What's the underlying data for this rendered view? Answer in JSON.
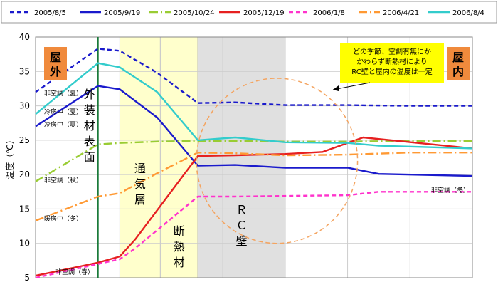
{
  "chart_data": {
    "type": "line",
    "ylabel": "温度（℃）",
    "ylim": [
      5,
      40
    ],
    "yticks": [
      5,
      10,
      15,
      20,
      25,
      30,
      35,
      40
    ],
    "grid": true,
    "legend_placement": "top",
    "series": [
      {
        "name": "2005/8/5",
        "color": "#1a1acc",
        "dash": "6,4",
        "points": [
          [
            0,
            32
          ],
          [
            1,
            38.3
          ],
          [
            1.35,
            38
          ],
          [
            1.95,
            34.8
          ],
          [
            2.6,
            30.4
          ],
          [
            3.2,
            30.5
          ],
          [
            4.0,
            30.1
          ],
          [
            5.0,
            30.1
          ],
          [
            6.0,
            30.0
          ],
          [
            7.0,
            30.0
          ]
        ]
      },
      {
        "name": "2005/9/19",
        "color": "#1a1acc",
        "dash": "",
        "points": [
          [
            0,
            27
          ],
          [
            1,
            32.9
          ],
          [
            1.35,
            32.4
          ],
          [
            1.95,
            28.3
          ],
          [
            2.6,
            21.3
          ],
          [
            3.2,
            21.4
          ],
          [
            4.0,
            21.0
          ],
          [
            5.0,
            21.0
          ],
          [
            5.5,
            20.1
          ],
          [
            7.0,
            19.8
          ]
        ]
      },
      {
        "name": "2005/10/24",
        "color": "#99cc33",
        "dash": "12,4,2,4",
        "points": [
          [
            0,
            19
          ],
          [
            1,
            24.4
          ],
          [
            1.35,
            24.6
          ],
          [
            1.95,
            24.8
          ],
          [
            2.6,
            24.9
          ],
          [
            3.2,
            24.9
          ],
          [
            4.0,
            24.8
          ],
          [
            5.0,
            24.8
          ],
          [
            6.0,
            24.9
          ],
          [
            7.0,
            24.9
          ]
        ]
      },
      {
        "name": "2005/12/19",
        "color": "#e62020",
        "dash": "",
        "points": [
          [
            0,
            5.3
          ],
          [
            1,
            7.2
          ],
          [
            1.35,
            8.1
          ],
          [
            1.6,
            10.6
          ],
          [
            2.6,
            22.7
          ],
          [
            3.2,
            22.8
          ],
          [
            4.0,
            23.0
          ],
          [
            4.6,
            23.3
          ],
          [
            5.25,
            25.4
          ],
          [
            7.0,
            23.8
          ]
        ]
      },
      {
        "name": "2006/1/8",
        "color": "#ff33cc",
        "dash": "6,4",
        "points": [
          [
            0,
            5.0
          ],
          [
            1,
            7.0
          ],
          [
            1.35,
            7.7
          ],
          [
            1.6,
            9.3
          ],
          [
            2.6,
            16.8
          ],
          [
            3.2,
            16.8
          ],
          [
            4.0,
            16.9
          ],
          [
            5.0,
            17.0
          ],
          [
            5.5,
            17.5
          ],
          [
            7.0,
            17.5
          ]
        ]
      },
      {
        "name": "2006/4/21",
        "color": "#ff9933",
        "dash": "12,4,2,4",
        "points": [
          [
            0,
            13.3
          ],
          [
            1,
            16.8
          ],
          [
            1.35,
            17.3
          ],
          [
            1.95,
            20.2
          ],
          [
            2.6,
            23.2
          ],
          [
            3.2,
            23.1
          ],
          [
            4.0,
            22.8
          ],
          [
            5.0,
            22.9
          ],
          [
            6.0,
            23.2
          ],
          [
            7.0,
            23.2
          ]
        ]
      },
      {
        "name": "2006/8/4",
        "color": "#33cccc",
        "dash": "",
        "points": [
          [
            0,
            28.8
          ],
          [
            1,
            36.2
          ],
          [
            1.35,
            35.6
          ],
          [
            1.95,
            32.0
          ],
          [
            2.6,
            25.0
          ],
          [
            3.2,
            25.4
          ],
          [
            4.0,
            24.7
          ],
          [
            5.0,
            24.6
          ],
          [
            5.5,
            24.2
          ],
          [
            7.0,
            23.8
          ]
        ]
      }
    ],
    "regions": [
      {
        "label": "通\n気\n層",
        "color": "#ffffcc"
      },
      {
        "label": "断\n熱\n材",
        "color": "#ffffcc"
      },
      {
        "label": "Ｒ\nＣ\n壁",
        "color": "#e0e0e0"
      }
    ],
    "vertical_line_label": "外\n装\n材\n表\n面",
    "outdoor_label": "屋外",
    "indoor_label": "屋内",
    "callout": "どの季節、空調有無にかかわらず断熱材によりRC壁と屋内の温度は一定",
    "annotations": [
      "非空調（夏）",
      "冷房中（夏）",
      "冷房中（夏）",
      "非空調（秋）",
      "暖房中（冬）",
      "非空調（春）",
      "非空調（冬）"
    ]
  }
}
